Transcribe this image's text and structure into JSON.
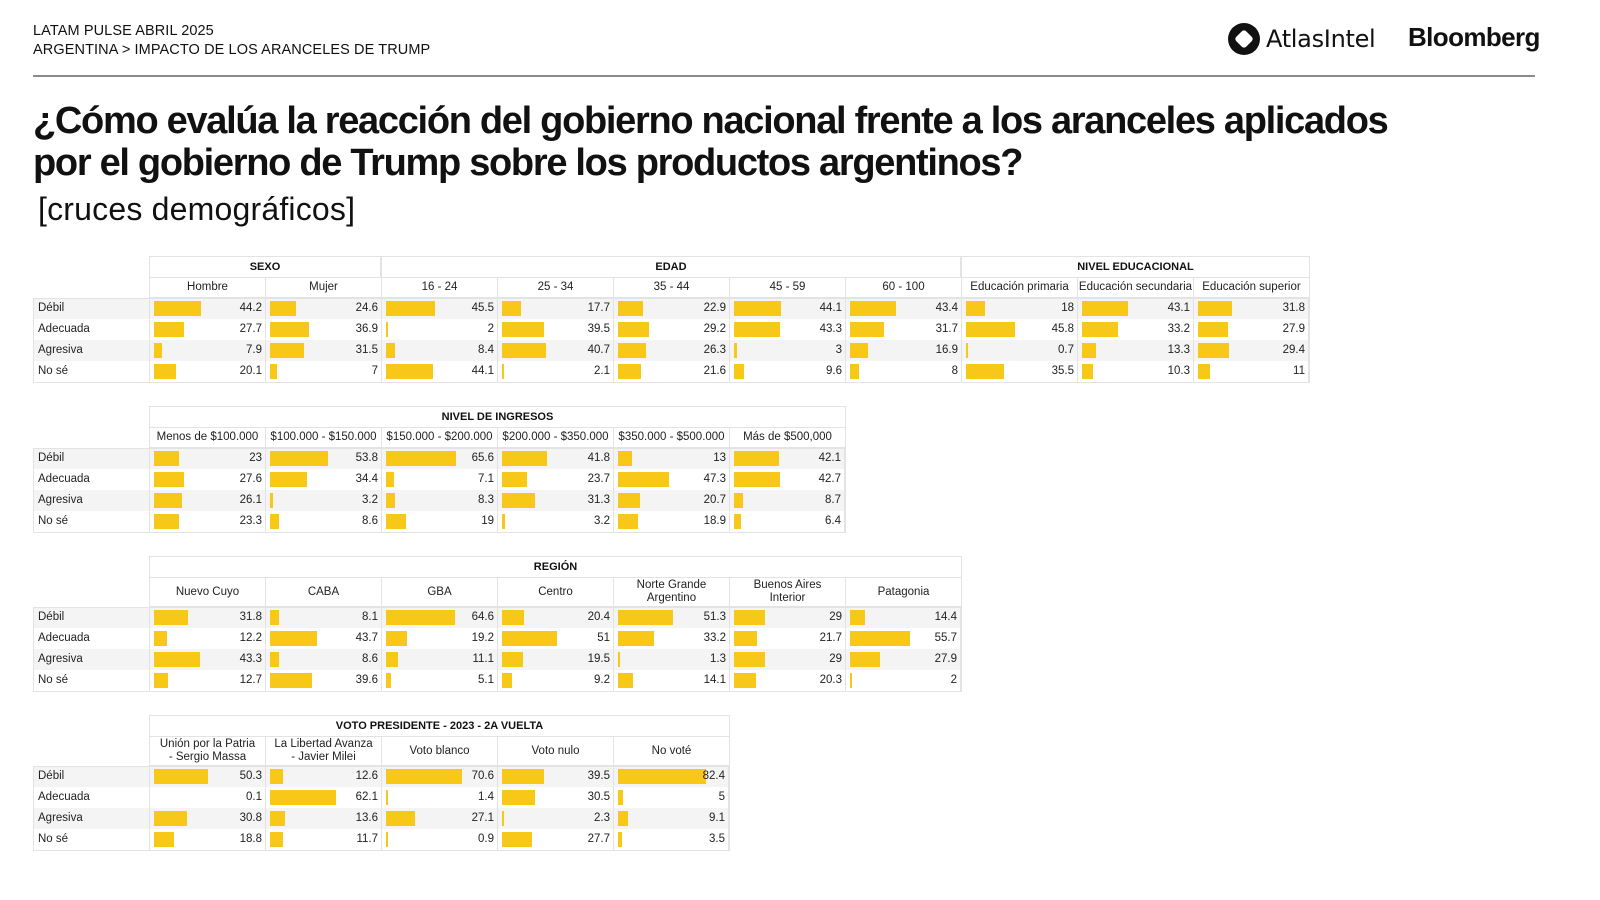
{
  "header": {
    "line1": "LATAM PULSE ABRIL 2025",
    "line2": "ARGENTINA > IMPACTO DE LOS ARANCELES DE TRUMP",
    "logo_atlas": "AtlasIntel",
    "logo_bloomberg": "Bloomberg"
  },
  "title": "¿Cómo evalúa la reacción del gobierno nacional frente a los aranceles aplicados por el gobierno de Trump sobre los productos argentinos?",
  "subtitle": "[cruces demográficos]",
  "colors": {
    "bar": "#f7c817",
    "stripe": "#f4f4f4",
    "border": "#e3e3e3"
  },
  "chart_data": [
    {
      "type": "table",
      "title": "Cruces demográficos - tabla 1",
      "rows": [
        "Débil",
        "Adecuada",
        "Agresiva",
        "No sé"
      ],
      "groups": [
        {
          "name": "SEXO",
          "columns": [
            {
              "label": "Hombre",
              "values": [
                44.2,
                27.7,
                7.9,
                20.1
              ]
            },
            {
              "label": "Mujer",
              "values": [
                24.6,
                36.9,
                31.5,
                7
              ]
            }
          ]
        },
        {
          "name": "EDAD",
          "columns": [
            {
              "label": "16 - 24",
              "values": [
                45.5,
                2,
                8.4,
                44.1
              ]
            },
            {
              "label": "25 - 34",
              "values": [
                17.7,
                39.5,
                40.7,
                2.1
              ]
            },
            {
              "label": "35 - 44",
              "values": [
                22.9,
                29.2,
                26.3,
                21.6
              ]
            },
            {
              "label": "45 - 59",
              "values": [
                44.1,
                43.3,
                3,
                9.6
              ]
            },
            {
              "label": "60 - 100",
              "values": [
                43.4,
                31.7,
                16.9,
                8
              ]
            }
          ]
        },
        {
          "name": "NIVEL EDUCACIONAL",
          "columns": [
            {
              "label": "Educación primaria",
              "values": [
                18,
                45.8,
                0.7,
                35.5
              ]
            },
            {
              "label": "Educación secundaria",
              "values": [
                43.1,
                33.2,
                13.3,
                10.3
              ]
            },
            {
              "label": "Educación superior",
              "values": [
                31.8,
                27.9,
                29.4,
                11
              ]
            }
          ]
        }
      ]
    },
    {
      "type": "table",
      "title": "Cruces demográficos - tabla 2",
      "rows": [
        "Débil",
        "Adecuada",
        "Agresiva",
        "No sé"
      ],
      "groups": [
        {
          "name": "NIVEL DE INGRESOS",
          "columns": [
            {
              "label": "Menos de $100.000",
              "values": [
                23,
                27.6,
                26.1,
                23.3
              ]
            },
            {
              "label": "$100.000 - $150.000",
              "values": [
                53.8,
                34.4,
                3.2,
                8.6
              ]
            },
            {
              "label": "$150.000 - $200.000",
              "values": [
                65.6,
                7.1,
                8.3,
                19
              ]
            },
            {
              "label": "$200.000 - $350.000",
              "values": [
                41.8,
                23.7,
                31.3,
                3.2
              ]
            },
            {
              "label": "$350.000 - $500.000",
              "values": [
                13,
                47.3,
                20.7,
                18.9
              ]
            },
            {
              "label": "Más de $500,000",
              "values": [
                42.1,
                42.7,
                8.7,
                6.4
              ]
            }
          ]
        }
      ]
    },
    {
      "type": "table",
      "title": "Cruces demográficos - tabla 3",
      "rows": [
        "Débil",
        "Adecuada",
        "Agresiva",
        "No sé"
      ],
      "groups": [
        {
          "name": "REGIÓN",
          "columns": [
            {
              "label": "Nuevo Cuyo",
              "values": [
                31.8,
                12.2,
                43.3,
                12.7
              ]
            },
            {
              "label": "CABA",
              "values": [
                8.1,
                43.7,
                8.6,
                39.6
              ]
            },
            {
              "label": "GBA",
              "values": [
                64.6,
                19.2,
                11.1,
                5.1
              ]
            },
            {
              "label": "Centro",
              "values": [
                20.4,
                51,
                19.5,
                9.2
              ]
            },
            {
              "label": "Norte Grande Argentino",
              "values": [
                51.3,
                33.2,
                1.3,
                14.1
              ]
            },
            {
              "label": "Buenos Aires Interior",
              "values": [
                29,
                21.7,
                29,
                20.3
              ]
            },
            {
              "label": "Patagonia",
              "values": [
                14.4,
                55.7,
                27.9,
                2
              ]
            }
          ]
        }
      ]
    },
    {
      "type": "table",
      "title": "Cruces demográficos - tabla 4",
      "rows": [
        "Débil",
        "Adecuada",
        "Agresiva",
        "No sé"
      ],
      "groups": [
        {
          "name": "VOTO PRESIDENTE - 2023 - 2A VUELTA",
          "columns": [
            {
              "label": "Unión por la Patria - Sergio Massa",
              "values": [
                50.3,
                0.1,
                30.8,
                18.8
              ]
            },
            {
              "label": "La Libertad Avanza - Javier Milei",
              "values": [
                12.6,
                62.1,
                13.6,
                11.7
              ]
            },
            {
              "label": "Voto blanco",
              "values": [
                70.6,
                1.4,
                27.1,
                0.9
              ]
            },
            {
              "label": "Voto nulo",
              "values": [
                39.5,
                30.5,
                2.3,
                27.7
              ]
            },
            {
              "label": "No voté",
              "values": [
                82.4,
                5,
                9.1,
                3.5
              ]
            }
          ]
        }
      ]
    }
  ]
}
